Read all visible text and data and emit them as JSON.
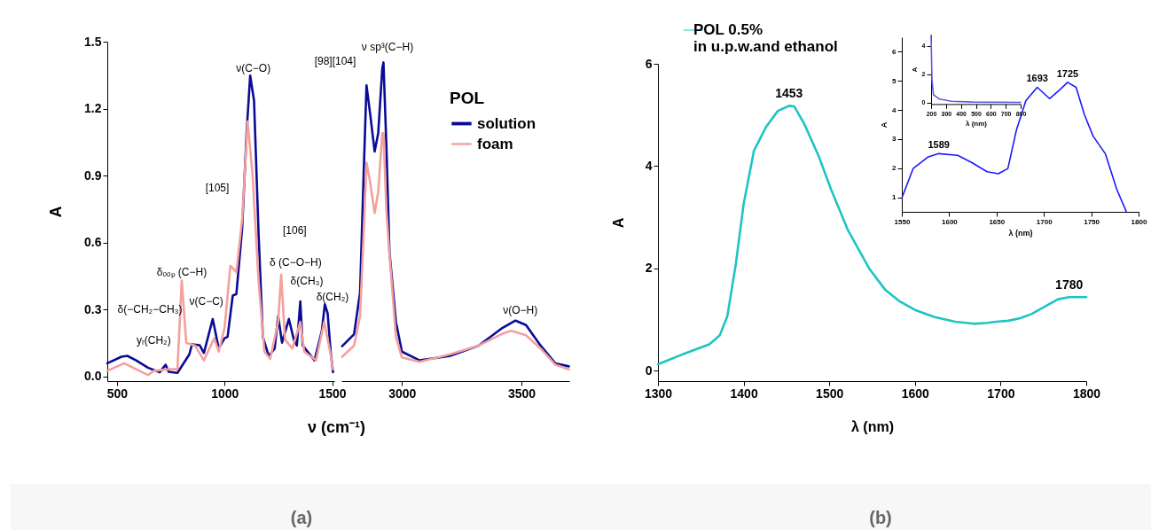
{
  "chart_data": [
    {
      "type": "line",
      "xlabel": "ν (cm⁻¹)",
      "ylabel": "A",
      "xlim": [
        455,
        1510
      ],
      "xticks": [
        500,
        1000,
        1500
      ],
      "ylim": [
        -0.02,
        1.5
      ],
      "yticks": [
        {
          "value": 0,
          "label": "0.0"
        },
        {
          "value": 0.3,
          "label": "0.3"
        },
        {
          "value": 0.6,
          "label": "0.6"
        },
        {
          "value": 0.9,
          "label": "0.9"
        },
        {
          "value": 1.2,
          "label": "1.2"
        },
        {
          "value": 1.5,
          "label": "1.5"
        }
      ],
      "series": [
        {
          "color": "#0a0a96",
          "x": [
            455,
            521,
            548,
            589,
            644,
            699,
            726,
            740,
            781,
            836,
            849,
            884,
            904,
            945,
            973,
            1000,
            1014,
            1038,
            1055,
            1082,
            1103,
            1119,
            1137,
            1158,
            1178,
            1205,
            1233,
            1249,
            1267,
            1299,
            1322,
            1336,
            1352,
            1363,
            1418,
            1452,
            1466,
            1479,
            1493,
            1504
          ],
          "values": [
            0.06,
            0.089,
            0.093,
            0.073,
            0.04,
            0.02,
            0.053,
            0.022,
            0.017,
            0.099,
            0.145,
            0.141,
            0.106,
            0.258,
            0.126,
            0.172,
            0.178,
            0.363,
            0.37,
            0.667,
            1.103,
            1.348,
            1.236,
            0.641,
            0.178,
            0.093,
            0.126,
            0.271,
            0.152,
            0.258,
            0.165,
            0.139,
            0.337,
            0.139,
            0.073,
            0.205,
            0.324,
            0.284,
            0.112,
            0.02
          ]
        },
        {
          "color": "#f4a09c",
          "x": [
            455,
            534,
            589,
            644,
            671,
            740,
            781,
            801,
            822,
            863,
            904,
            952,
            973,
            1000,
            1027,
            1055,
            1082,
            1107,
            1130,
            1158,
            1185,
            1212,
            1249,
            1263,
            1281,
            1315,
            1352,
            1370,
            1425,
            1463,
            1493,
            1504
          ],
          "values": [
            0.026,
            0.06,
            0.033,
            0.007,
            0.026,
            0.033,
            0.033,
            0.43,
            0.152,
            0.139,
            0.073,
            0.172,
            0.112,
            0.218,
            0.496,
            0.469,
            0.707,
            1.143,
            0.905,
            0.43,
            0.112,
            0.079,
            0.245,
            0.456,
            0.165,
            0.126,
            0.245,
            0.112,
            0.073,
            0.245,
            0.099,
            0.033
          ]
        }
      ],
      "annotations": [
        "δ(−CH₂−CH₃)",
        "yᵣ(CH₂)",
        "δₒₒₚ (C−H)",
        "ν(C−C)",
        "ν(C−O)",
        "[105]",
        "[106]",
        "δ (C−O−H)",
        "δ(CH₃)",
        "δ(CH₂)",
        "(a)"
      ]
    },
    {
      "type": "line",
      "xlim": [
        2747,
        3700
      ],
      "xticks": [
        3000,
        3500
      ],
      "ylim": [
        -0.02,
        1.5
      ],
      "tick_labels": "x",
      "legend": "top right",
      "legend_title": "POL",
      "series": [
        {
          "name": "solution",
          "color": "#0a0a96",
          "x": [
            2750,
            2800,
            2825,
            2840,
            2852,
            2868,
            2886,
            2901,
            2918,
            2923,
            2935,
            2948,
            2975,
            3000,
            3074,
            3198,
            3321,
            3420,
            3475,
            3519,
            3580,
            3642,
            3698
          ],
          "values": [
            0.136,
            0.19,
            0.377,
            0.905,
            1.304,
            1.17,
            1.008,
            1.09,
            1.381,
            1.407,
            1.037,
            0.56,
            0.245,
            0.112,
            0.073,
            0.092,
            0.139,
            0.218,
            0.251,
            0.231,
            0.139,
            0.059,
            0.046
          ]
        },
        {
          "name": "foam",
          "color": "#f4a09c",
          "x": [
            2750,
            2800,
            2825,
            2840,
            2852,
            2868,
            2886,
            2901,
            2918,
            2923,
            2935,
            2948,
            2975,
            3000,
            3074,
            3198,
            3321,
            3420,
            3457,
            3519,
            3580,
            3642,
            3698
          ],
          "values": [
            0.089,
            0.139,
            0.271,
            0.641,
            0.958,
            0.866,
            0.733,
            0.826,
            1.09,
            1.09,
            0.747,
            0.548,
            0.178,
            0.086,
            0.066,
            0.099,
            0.139,
            0.192,
            0.205,
            0.185,
            0.126,
            0.053,
            0.033
          ]
        }
      ],
      "annotations": [
        "[98][104]",
        "ν sp³(C−H)",
        "ν(O−H)"
      ]
    },
    {
      "type": "line",
      "xlabel": "λ (nm)",
      "ylabel": "A",
      "xlim": [
        1300,
        1800
      ],
      "xticks": [
        1300,
        1400,
        1500,
        1600,
        1700,
        1800
      ],
      "ylim": [
        -0.2,
        6
      ],
      "yticks": [
        0,
        2,
        4,
        6
      ],
      "legend": "top left",
      "series": [
        {
          "name": "POL 0.5%\nin u.p.w.and ethanol",
          "color": "#1fc4c4",
          "x": [
            1300,
            1333,
            1360,
            1372,
            1381,
            1391,
            1400,
            1412,
            1426,
            1440,
            1453,
            1459,
            1471,
            1488,
            1502,
            1522,
            1543,
            1547,
            1565,
            1582,
            1600,
            1623,
            1647,
            1669,
            1685,
            1695,
            1709,
            1723,
            1736,
            1754,
            1767,
            1780,
            1800
          ],
          "values": [
            0.13,
            0.35,
            0.52,
            0.69,
            1.07,
            2.1,
            3.26,
            4.3,
            4.76,
            5.08,
            5.18,
            5.17,
            4.82,
            4.18,
            3.55,
            2.74,
            2.11,
            1.99,
            1.59,
            1.36,
            1.19,
            1.05,
            0.96,
            0.92,
            0.94,
            0.96,
            0.98,
            1.03,
            1.11,
            1.28,
            1.4,
            1.44,
            1.44
          ]
        }
      ],
      "annotations": [
        {
          "text": "1453",
          "x": 1453,
          "y": 5.18
        },
        {
          "text": "1780",
          "x": 1780,
          "y": 1.44
        },
        "(b)"
      ]
    },
    {
      "type": "line",
      "xlabel": "λ (nm)",
      "ylabel": "A",
      "xlim": [
        1550,
        1800
      ],
      "xticks": [
        1550,
        1600,
        1650,
        1700,
        1750,
        1800
      ],
      "ylim": [
        0.5,
        6.5
      ],
      "yticks": [
        1,
        2,
        3,
        4,
        5,
        6
      ],
      "series": [
        {
          "color": "#1a1aff",
          "x": [
            1550,
            1562,
            1578,
            1589,
            1609,
            1624,
            1640,
            1652,
            1662,
            1671,
            1681,
            1693,
            1706,
            1718,
            1725,
            1734,
            1743,
            1752,
            1765,
            1777,
            1787
          ],
          "values": [
            0.97,
            1.99,
            2.39,
            2.5,
            2.44,
            2.19,
            1.88,
            1.81,
            1.99,
            3.31,
            4.32,
            4.78,
            4.39,
            4.73,
            4.95,
            4.78,
            3.82,
            3.1,
            2.49,
            1.27,
            0.51
          ]
        }
      ],
      "annotations": [
        {
          "text": "1589",
          "x": 1589,
          "y": 2.5
        },
        {
          "text": "1693",
          "x": 1693,
          "y": 4.78
        },
        {
          "text": "1725",
          "x": 1725,
          "y": 4.95
        }
      ]
    },
    {
      "type": "line",
      "xlabel": "λ (nm)",
      "ylabel": "A",
      "xlim": [
        200,
        800
      ],
      "xticks": [
        200,
        300,
        400,
        500,
        600,
        700,
        800
      ],
      "ylim": [
        -0.1,
        4.8
      ],
      "yticks": [
        0,
        2,
        4
      ],
      "series": [
        {
          "color": "#5a5ae6",
          "x": [
            200,
            206,
            216,
            256,
            336,
            476,
            800
          ],
          "values": [
            4.73,
            1.6,
            0.56,
            0.25,
            0.1,
            0.04,
            0.02
          ]
        }
      ]
    }
  ]
}
